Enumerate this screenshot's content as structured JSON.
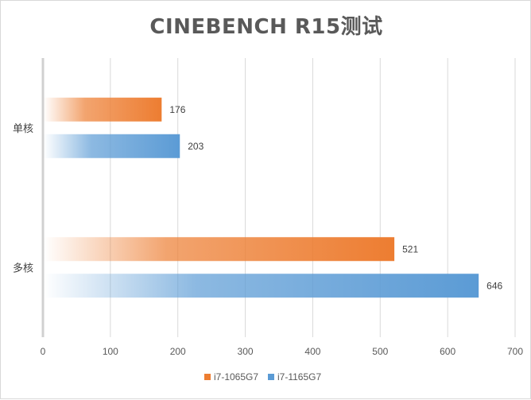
{
  "chart_data": {
    "type": "bar",
    "orientation": "horizontal",
    "title": "CINEBENCH R15测试",
    "categories": [
      "单核",
      "多核"
    ],
    "series": [
      {
        "name": "i7-1065G7",
        "values": [
          176,
          521
        ],
        "color": "#ED7D31"
      },
      {
        "name": "i7-1165G7",
        "values": [
          203,
          646
        ],
        "color": "#5B9BD5"
      }
    ],
    "xlim": [
      0,
      700
    ],
    "xticks": [
      0,
      100,
      200,
      300,
      400,
      500,
      600,
      700
    ],
    "grid": true,
    "legend": "bottom"
  }
}
